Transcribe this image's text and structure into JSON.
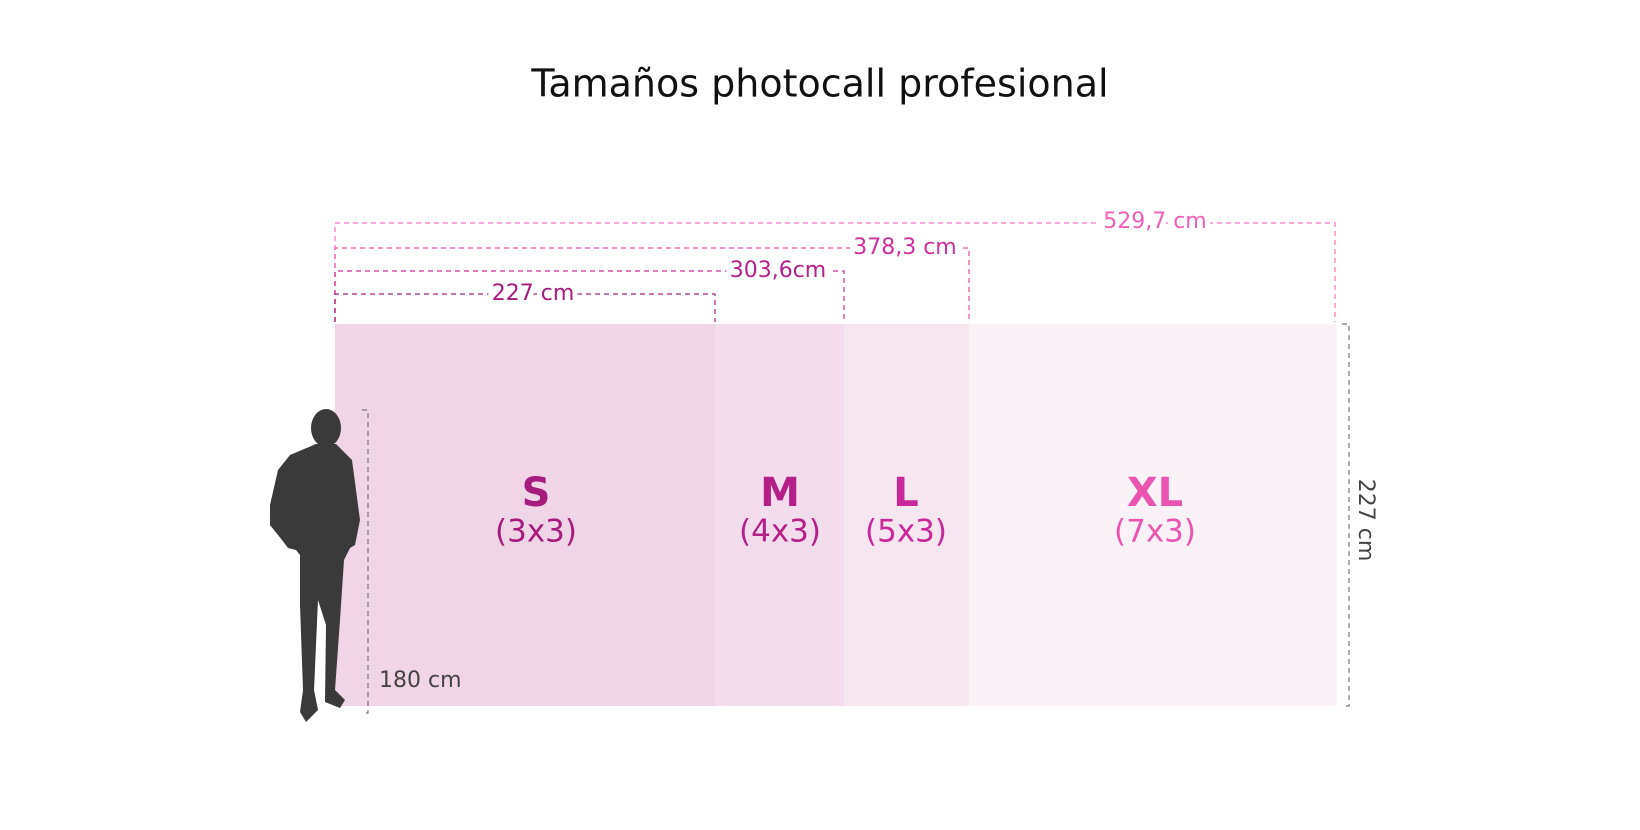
{
  "header": {
    "title": "Tamaños photocall profesional"
  },
  "panels": [
    {
      "size": "S",
      "format": "(3x3)",
      "width": "227 cm"
    },
    {
      "size": "M",
      "format": "(4x3)",
      "width": "303,6cm"
    },
    {
      "size": "L",
      "format": "(5x3)",
      "width": "378,3 cm"
    },
    {
      "size": "XL",
      "format": "(7x3)",
      "width": "529,7 cm"
    }
  ],
  "height": "227 cm",
  "person": {
    "height": "180 cm"
  }
}
